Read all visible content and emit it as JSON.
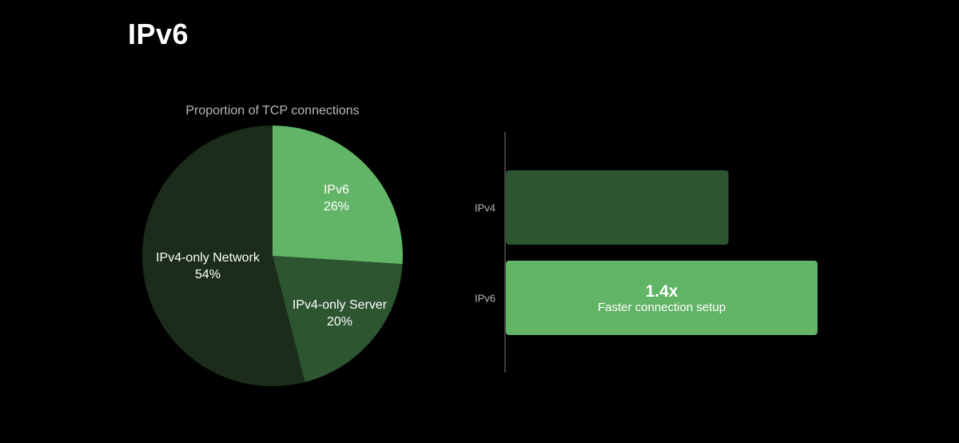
{
  "page": {
    "title": "IPv6"
  },
  "colors": {
    "background": "#000000",
    "ipv6_green": "#62b466",
    "ipv4_server_green": "#2c5530",
    "ipv4_network_green": "#1b2c1a",
    "axis": "#555555"
  },
  "chart_data": [
    {
      "type": "pie",
      "title": "Proportion of TCP connections",
      "slices": [
        {
          "label": "IPv6",
          "value": 26,
          "display": "26%",
          "color": "#62b466"
        },
        {
          "label": "IPv4-only Server",
          "value": 20,
          "display": "20%",
          "color": "#2c5530"
        },
        {
          "label": "IPv4-only Network",
          "value": 54,
          "display": "54%",
          "color": "#1b2c1a"
        }
      ]
    },
    {
      "type": "bar",
      "orientation": "horizontal",
      "categories": [
        "IPv4",
        "IPv6"
      ],
      "values": [
        1.0,
        1.4
      ],
      "colors": [
        "#2c5530",
        "#62b466"
      ],
      "annotation": {
        "category": "IPv6",
        "value_text": "1.4x",
        "subtext": "Faster connection setup"
      },
      "xlim": [
        0,
        1.4
      ],
      "grid": false
    }
  ]
}
